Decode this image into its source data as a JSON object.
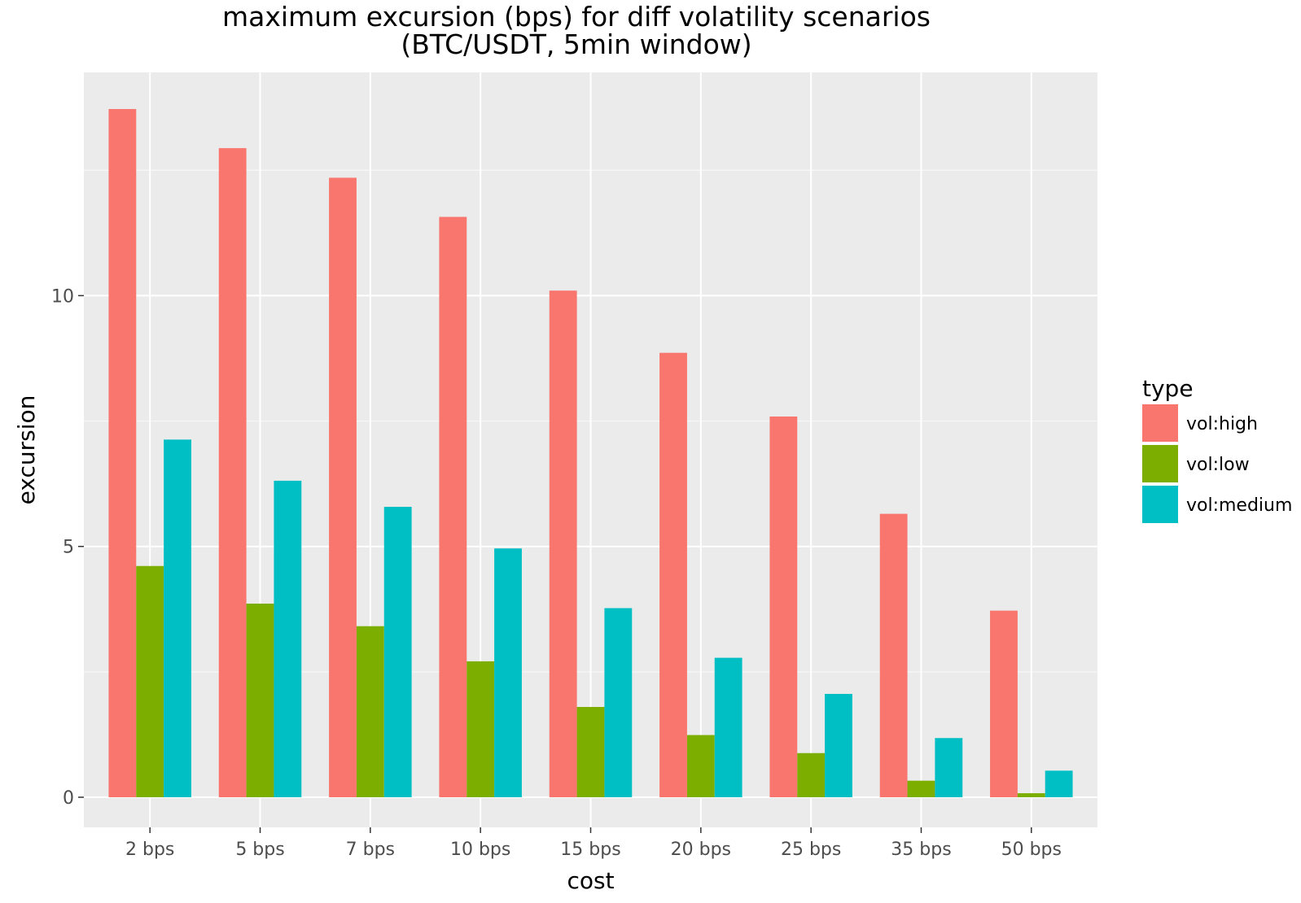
{
  "chart_data": {
    "type": "bar",
    "title": "maximum excursion (bps) for diff volatility scenarios",
    "subtitle": "(BTC/USDT, 5min window)",
    "xlabel": "cost",
    "ylabel": "excursion",
    "categories": [
      "2 bps",
      "5 bps",
      "7 bps",
      "10 bps",
      "15 bps",
      "20 bps",
      "25 bps",
      "35 bps",
      "50 bps"
    ],
    "ylim": [
      -0.6,
      14.45
    ],
    "yticks": [
      0,
      5,
      10
    ],
    "grid": true,
    "legend": {
      "title": "type",
      "position": "right"
    },
    "series": [
      {
        "name": "vol:high",
        "color": "#F8766D",
        "values": [
          13.72,
          12.94,
          12.35,
          11.57,
          10.1,
          8.86,
          7.59,
          5.65,
          3.72
        ]
      },
      {
        "name": "vol:low",
        "color": "#7CAE00",
        "values": [
          4.61,
          3.86,
          3.41,
          2.71,
          1.8,
          1.24,
          0.88,
          0.33,
          0.08
        ]
      },
      {
        "name": "vol:medium",
        "color": "#00BFC4",
        "values": [
          7.13,
          6.31,
          5.79,
          4.96,
          3.77,
          2.78,
          2.06,
          1.18,
          0.53
        ]
      }
    ]
  }
}
